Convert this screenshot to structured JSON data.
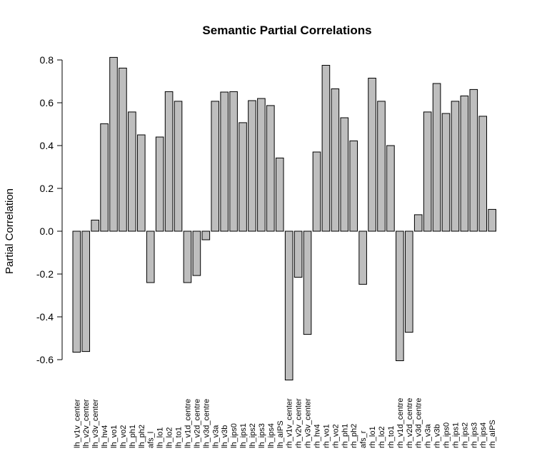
{
  "chart_data": {
    "type": "bar",
    "title": "Semantic Partial Correlations",
    "xlabel": "",
    "ylabel": "Partial Correlation",
    "ylim": [
      -0.7,
      0.85
    ],
    "yticks": [
      -0.6,
      -0.4,
      -0.2,
      0.0,
      0.2,
      0.4,
      0.6,
      0.8
    ],
    "ytick_labels": [
      "-0.6",
      "-0.4",
      "-0.2",
      "0.0",
      "0.2",
      "0.4",
      "0.6",
      "0.8"
    ],
    "grid": false,
    "bar_color": "#bebebe",
    "categories": [
      "lh_v1v_center",
      "lh_v2v_center",
      "lh_v3v_center",
      "lh_hv4",
      "lh_vo1",
      "lh_vo2",
      "lh_ph1",
      "lh_ph2",
      "afs_l",
      "lh_lo1",
      "lh_lo2",
      "lh_to1",
      "lh_v1d_centre",
      "lh_v2d_centre",
      "lh_v3d_centre",
      "lh_v3a",
      "lh_v3b",
      "lh_ips0",
      "lh_ips1",
      "lh_ips2",
      "lh_ips3",
      "lh_ips4",
      "lh_aIPS",
      "rh_v1v_center",
      "rh_v2v_center",
      "rh_v3v_center",
      "rh_hv4",
      "rh_vo1",
      "rh_vo2",
      "rh_ph1",
      "rh_ph2",
      "afs_r",
      "rh_lo1",
      "rh_lo2",
      "rh_to1",
      "rh_v1d_centre",
      "rh_v2d_centre",
      "rh_v3d_centre",
      "rh_v3a",
      "rh_v3b",
      "rh_ips0",
      "rh_ips1",
      "rh_ips2",
      "rh_ips3",
      "rh_ips4",
      "rh_aIPS"
    ],
    "values": [
      -0.565,
      -0.562,
      0.052,
      0.502,
      0.812,
      0.762,
      0.557,
      0.45,
      -0.24,
      0.44,
      0.652,
      0.607,
      -0.24,
      -0.207,
      -0.04,
      0.607,
      0.65,
      0.652,
      0.507,
      0.61,
      0.62,
      0.587,
      0.342,
      -0.695,
      -0.215,
      -0.482,
      0.37,
      0.775,
      0.665,
      0.53,
      0.422,
      -0.248,
      0.715,
      0.607,
      0.4,
      -0.605,
      -0.472,
      0.077,
      0.557,
      0.69,
      0.55,
      0.607,
      0.632,
      0.662,
      0.537,
      0.102
    ]
  }
}
